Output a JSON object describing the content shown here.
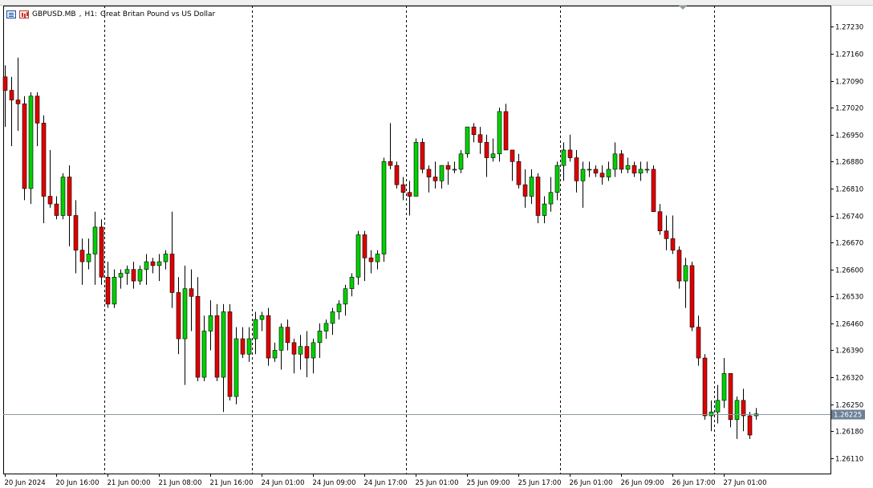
{
  "header": {
    "symbol": "GBPUSD.MB",
    "timeframe": "H1:",
    "description": "Great Britan Pound vs US Dollar",
    "icons": [
      "market-watch-icon",
      "chart-type-icon"
    ]
  },
  "colors": {
    "bull": "#00d000",
    "bear": "#e00000",
    "wick": "#000000",
    "grid": "#000000",
    "bid_line": "#8a9aa0",
    "bid_label_bg": "#6b8196",
    "bid_label_text": "#ffffff",
    "background": "#ffffff"
  },
  "chart_data": {
    "type": "candlestick",
    "y_ticks": [
      "1.27230",
      "1.27160",
      "1.27090",
      "1.27020",
      "1.26950",
      "1.26880",
      "1.26810",
      "1.26740",
      "1.26670",
      "1.26600",
      "1.26530",
      "1.26460",
      "1.26390",
      "1.26320",
      "1.26250",
      "1.26180",
      "1.26110"
    ],
    "ylim": [
      1.2607,
      1.27285
    ],
    "x_ticks": [
      "20 Jun 2024",
      "20 Jun 16:00",
      "21 Jun 00:00",
      "21 Jun 08:00",
      "21 Jun 16:00",
      "24 Jun 01:00",
      "24 Jun 09:00",
      "24 Jun 17:00",
      "25 Jun 01:00",
      "25 Jun 09:00",
      "25 Jun 17:00",
      "26 Jun 01:00",
      "26 Jun 09:00",
      "26 Jun 17:00",
      "27 Jun 01:00"
    ],
    "day_separators_after_bar": [
      15,
      38,
      62,
      86,
      110
    ],
    "bid": "1.26225",
    "bid_value": 1.26225,
    "candles": [
      [
        1.271,
        1.2713,
        1.2697,
        1.27065
      ],
      [
        1.27065,
        1.271,
        1.2692,
        1.2704
      ],
      [
        1.2704,
        1.2715,
        1.2696,
        1.2703
      ],
      [
        1.2703,
        1.2705,
        1.2678,
        1.2681
      ],
      [
        1.2681,
        1.2706,
        1.2677,
        1.2705
      ],
      [
        1.2705,
        1.2706,
        1.2692,
        1.2698
      ],
      [
        1.2698,
        1.27,
        1.2672,
        1.2679
      ],
      [
        1.2679,
        1.2691,
        1.2676,
        1.2677
      ],
      [
        1.2677,
        1.2679,
        1.2673,
        1.2674
      ],
      [
        1.2674,
        1.2685,
        1.2673,
        1.2684
      ],
      [
        1.2684,
        1.2687,
        1.2666,
        1.2674
      ],
      [
        1.2674,
        1.2678,
        1.2659,
        1.2665
      ],
      [
        1.2665,
        1.2668,
        1.2656,
        1.2662
      ],
      [
        1.2662,
        1.2668,
        1.266,
        1.2664
      ],
      [
        1.2664,
        1.2675,
        1.2656,
        1.2671
      ],
      [
        1.2671,
        1.2673,
        1.2656,
        1.2658
      ],
      [
        1.2658,
        1.2662,
        1.265,
        1.2651
      ],
      [
        1.2651,
        1.266,
        1.265,
        1.2658
      ],
      [
        1.2658,
        1.266,
        1.2655,
        1.2659
      ],
      [
        1.2659,
        1.2661,
        1.2656,
        1.266
      ],
      [
        1.266,
        1.2662,
        1.2655,
        1.2657
      ],
      [
        1.2657,
        1.2661,
        1.2656,
        1.266
      ],
      [
        1.266,
        1.2664,
        1.2656,
        1.2662
      ],
      [
        1.2662,
        1.2663,
        1.2659,
        1.2661
      ],
      [
        1.2661,
        1.2664,
        1.2657,
        1.2662
      ],
      [
        1.2662,
        1.2665,
        1.266,
        1.2664
      ],
      [
        1.2664,
        1.2675,
        1.265,
        1.2654
      ],
      [
        1.2654,
        1.2658,
        1.2638,
        1.2642
      ],
      [
        1.2642,
        1.2661,
        1.263,
        1.2655
      ],
      [
        1.2655,
        1.266,
        1.2644,
        1.2653
      ],
      [
        1.2653,
        1.2658,
        1.2631,
        1.2632
      ],
      [
        1.2632,
        1.2648,
        1.2631,
        1.2644
      ],
      [
        1.2644,
        1.2652,
        1.2639,
        1.2648
      ],
      [
        1.2648,
        1.2651,
        1.2631,
        1.2632
      ],
      [
        1.2632,
        1.2651,
        1.2623,
        1.2649
      ],
      [
        1.2649,
        1.2651,
        1.2626,
        1.2627
      ],
      [
        1.2627,
        1.2645,
        1.2625,
        1.2642
      ],
      [
        1.2642,
        1.2645,
        1.2637,
        1.2638
      ],
      [
        1.2638,
        1.2645,
        1.2636,
        1.2642
      ],
      [
        1.2642,
        1.2649,
        1.2638,
        1.2647
      ],
      [
        1.2647,
        1.2649,
        1.2644,
        1.2648
      ],
      [
        1.2648,
        1.265,
        1.2635,
        1.2637
      ],
      [
        1.2637,
        1.2641,
        1.2636,
        1.2639
      ],
      [
        1.2639,
        1.2646,
        1.2634,
        1.2645
      ],
      [
        1.2645,
        1.2647,
        1.2639,
        1.2641
      ],
      [
        1.2641,
        1.2642,
        1.2633,
        1.2638
      ],
      [
        1.2638,
        1.2643,
        1.2634,
        1.264
      ],
      [
        1.264,
        1.2644,
        1.2632,
        1.2637
      ],
      [
        1.2637,
        1.2642,
        1.2633,
        1.2641
      ],
      [
        1.2641,
        1.2646,
        1.2637,
        1.2644
      ],
      [
        1.2644,
        1.2647,
        1.2642,
        1.2646
      ],
      [
        1.2646,
        1.265,
        1.2643,
        1.2649
      ],
      [
        1.2649,
        1.2652,
        1.2647,
        1.2651
      ],
      [
        1.2651,
        1.2656,
        1.2648,
        1.2655
      ],
      [
        1.2655,
        1.2659,
        1.2653,
        1.2658
      ],
      [
        1.2658,
        1.267,
        1.2656,
        1.2669
      ],
      [
        1.2669,
        1.267,
        1.2657,
        1.2663
      ],
      [
        1.2663,
        1.2665,
        1.2659,
        1.2662
      ],
      [
        1.2662,
        1.2665,
        1.266,
        1.2664
      ],
      [
        1.2664,
        1.2689,
        1.2662,
        1.2688
      ],
      [
        1.2688,
        1.2698,
        1.2686,
        1.2687
      ],
      [
        1.2687,
        1.2688,
        1.2681,
        1.2682
      ],
      [
        1.2682,
        1.2684,
        1.2678,
        1.268
      ],
      [
        1.268,
        1.2683,
        1.2674,
        1.2679
      ],
      [
        1.2679,
        1.2694,
        1.2679,
        1.2693
      ],
      [
        1.2693,
        1.2694,
        1.2685,
        1.2686
      ],
      [
        1.2686,
        1.2687,
        1.268,
        1.2684
      ],
      [
        1.2684,
        1.2688,
        1.2681,
        1.2683
      ],
      [
        1.2683,
        1.2687,
        1.2681,
        1.2687
      ],
      [
        1.2687,
        1.2688,
        1.2682,
        1.2686
      ],
      [
        1.2686,
        1.2688,
        1.2685,
        1.2686
      ],
      [
        1.2686,
        1.2691,
        1.2685,
        1.269
      ],
      [
        1.269,
        1.2697,
        1.2689,
        1.2697
      ],
      [
        1.2697,
        1.2698,
        1.2693,
        1.2695
      ],
      [
        1.2695,
        1.2697,
        1.269,
        1.2693
      ],
      [
        1.2693,
        1.2695,
        1.2684,
        1.2689
      ],
      [
        1.2689,
        1.2694,
        1.2688,
        1.269
      ],
      [
        1.269,
        1.2702,
        1.2688,
        1.2701
      ],
      [
        1.2701,
        1.2703,
        1.2691,
        1.2691
      ],
      [
        1.2691,
        1.2691,
        1.2683,
        1.2688
      ],
      [
        1.2688,
        1.269,
        1.2681,
        1.2682
      ],
      [
        1.2682,
        1.2686,
        1.2676,
        1.2679
      ],
      [
        1.2679,
        1.2686,
        1.2677,
        1.2684
      ],
      [
        1.2684,
        1.2685,
        1.2672,
        1.2674
      ],
      [
        1.2674,
        1.2679,
        1.2672,
        1.2677
      ],
      [
        1.2677,
        1.2684,
        1.2675,
        1.268
      ],
      [
        1.268,
        1.2688,
        1.2678,
        1.2687
      ],
      [
        1.2687,
        1.2693,
        1.2683,
        1.2691
      ],
      [
        1.2691,
        1.2695,
        1.2688,
        1.2689
      ],
      [
        1.2689,
        1.2691,
        1.268,
        1.2683
      ],
      [
        1.2683,
        1.2688,
        1.2676,
        1.2686
      ],
      [
        1.2686,
        1.2688,
        1.2684,
        1.2686
      ],
      [
        1.2686,
        1.2687,
        1.2684,
        1.2685
      ],
      [
        1.2685,
        1.2687,
        1.2682,
        1.2684
      ],
      [
        1.2684,
        1.2688,
        1.2683,
        1.2686
      ],
      [
        1.2686,
        1.2693,
        1.2684,
        1.269
      ],
      [
        1.269,
        1.2691,
        1.2685,
        1.2686
      ],
      [
        1.2686,
        1.2689,
        1.2685,
        1.2687
      ],
      [
        1.2687,
        1.2688,
        1.2684,
        1.2685
      ],
      [
        1.2685,
        1.2688,
        1.2683,
        1.2686
      ],
      [
        1.2686,
        1.2688,
        1.2685,
        1.2686
      ],
      [
        1.2686,
        1.2687,
        1.2675,
        1.2675
      ],
      [
        1.2675,
        1.2677,
        1.2669,
        1.267
      ],
      [
        1.267,
        1.2674,
        1.2665,
        1.2668
      ],
      [
        1.2668,
        1.2674,
        1.2664,
        1.2665
      ],
      [
        1.2665,
        1.2666,
        1.2655,
        1.2657
      ],
      [
        1.2657,
        1.2663,
        1.265,
        1.2661
      ],
      [
        1.2661,
        1.2662,
        1.2644,
        1.2645
      ],
      [
        1.2645,
        1.2648,
        1.2635,
        1.2637
      ],
      [
        1.2637,
        1.2638,
        1.2621,
        1.2622
      ],
      [
        1.2622,
        1.2626,
        1.2618,
        1.2623
      ],
      [
        1.2623,
        1.263,
        1.262,
        1.2626
      ],
      [
        1.2626,
        1.2637,
        1.2624,
        1.2633
      ],
      [
        1.2633,
        1.2633,
        1.2619,
        1.2621
      ],
      [
        1.2621,
        1.2627,
        1.2616,
        1.2626
      ],
      [
        1.2626,
        1.2629,
        1.2618,
        1.2622
      ],
      [
        1.2622,
        1.2623,
        1.2616,
        1.2617
      ],
      [
        1.2622,
        1.2624,
        1.2621,
        1.26225
      ]
    ]
  }
}
